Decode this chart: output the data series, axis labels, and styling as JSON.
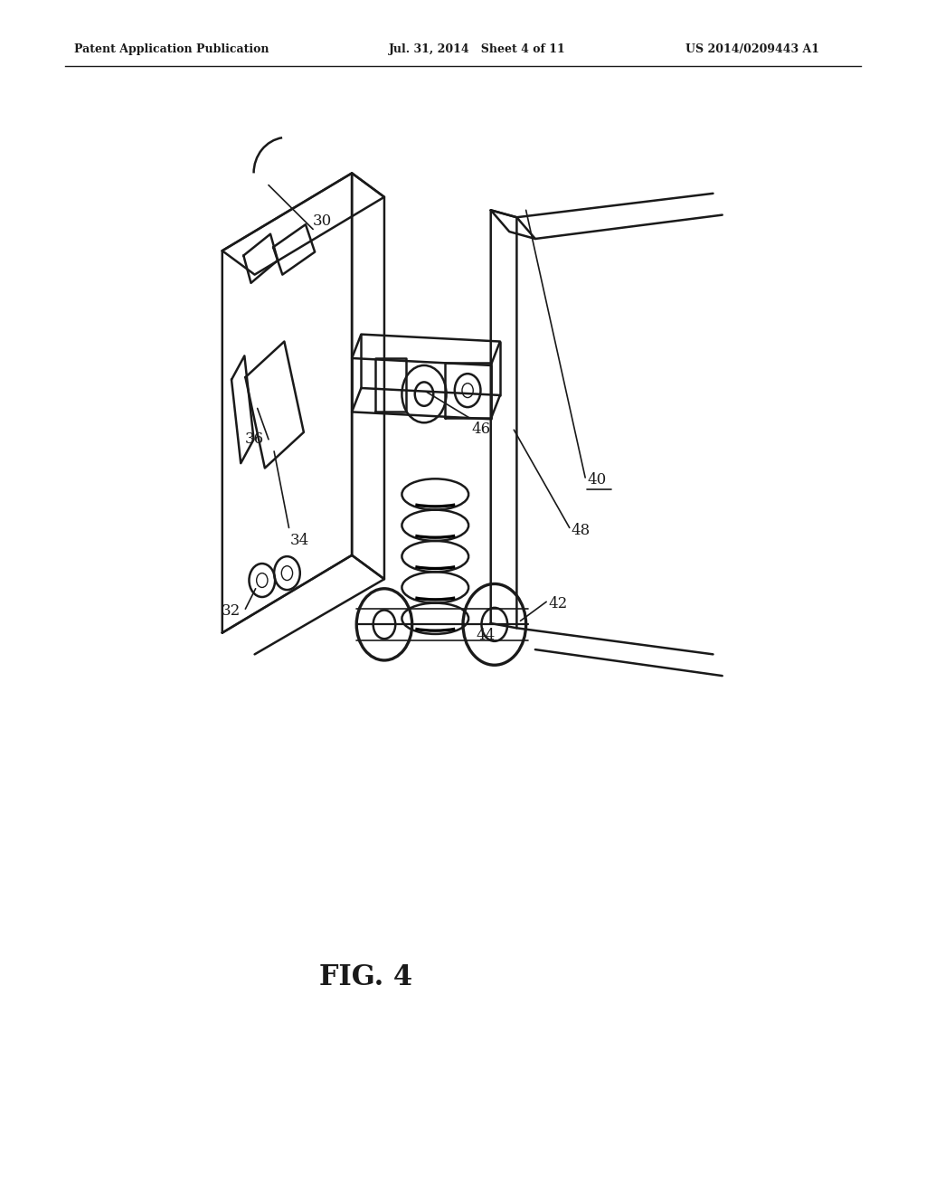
{
  "bg_color": "#ffffff",
  "header_left": "Patent Application Publication",
  "header_mid": "Jul. 31, 2014   Sheet 4 of 11",
  "header_right": "US 2014/0209443 A1",
  "fig_label": "FIG. 4",
  "line_color": "#1a1a1a",
  "text_color": "#1a1a1a",
  "lw_main": 1.8,
  "lw_thick": 2.4,
  "lw_leader": 1.2,
  "font_size_header": 9,
  "font_size_label": 12,
  "font_size_fig": 22
}
